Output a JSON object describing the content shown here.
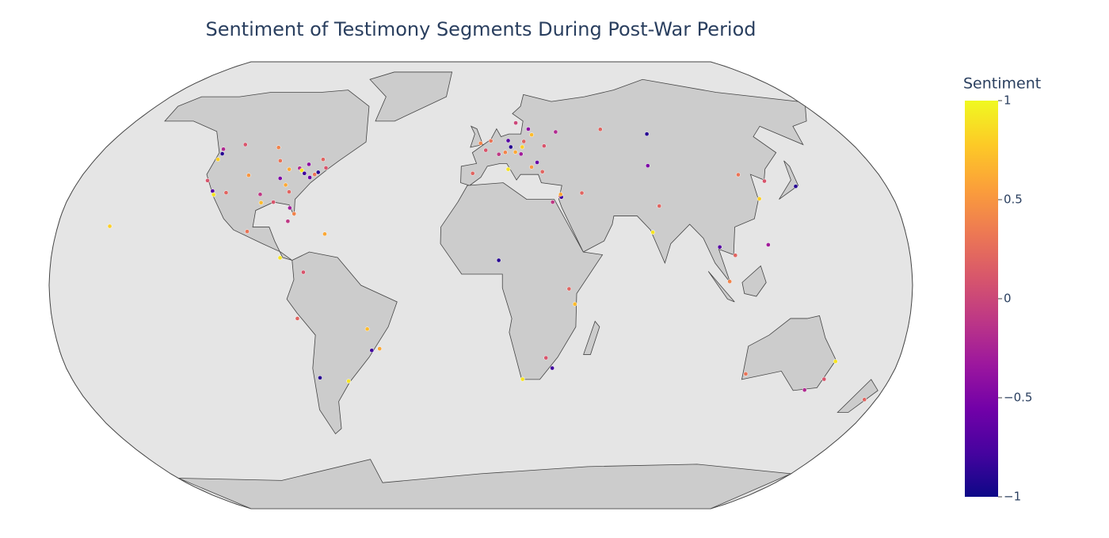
{
  "chart_data": {
    "type": "scattergeo",
    "title": "Sentiment of Testimony Segments During Post-War Period",
    "colorbar_title": "Sentiment",
    "colorscale": [
      "#0d0887",
      "#46039f",
      "#7201a8",
      "#9c179e",
      "#bd3786",
      "#d8576b",
      "#ed7953",
      "#fb9f3a",
      "#fdca26",
      "#f0f921"
    ],
    "clim": [
      -1,
      1
    ],
    "cticks": [
      1,
      0.5,
      0,
      {
        "value": -0.5,
        "label": "−0.5"
      },
      {
        "value": -1,
        "label": "−1"
      }
    ],
    "lon": [
      -74,
      -73.9,
      -75.2,
      -77,
      -71,
      -87.6,
      -83,
      -81.7,
      -80,
      -84.4,
      -80.2,
      -82.5,
      -90.1,
      -95.4,
      -96.8,
      -104.9,
      -112,
      -118.2,
      -117.2,
      -122.4,
      -122.3,
      -122.7,
      -93.3,
      -90.2,
      -86.8,
      -79.4,
      -73.6,
      -114,
      -123.1,
      -97.1,
      -99.1,
      -82.4,
      -66.1,
      -84.1,
      -74.1,
      -46.6,
      -43.2,
      -58.4,
      -70.7,
      -77,
      -47.9,
      2.35,
      -0.1,
      13.4,
      21,
      19.9,
      19,
      16.4,
      14.4,
      4.9,
      12.5,
      -3.7,
      26.1,
      30.5,
      37.6,
      23.3,
      18.1,
      24.1,
      25.3,
      8.5,
      11.6,
      28,
      34.8,
      35.2,
      35,
      31.2,
      44.4,
      82.9,
      60.6,
      76.9,
      116.4,
      121.5,
      139.7,
      126.9,
      77.2,
      72.9,
      100.5,
      106.7,
      121,
      103.8,
      28,
      18.4,
      31,
      36.8,
      7.5,
      39.3,
      151.2,
      145,
      153,
      115.9,
      174.8,
      -157.9
    ],
    "lat": [
      40.7,
      40.8,
      40,
      38.9,
      42.4,
      41.9,
      42.3,
      41.5,
      40.4,
      33.7,
      25.8,
      27.9,
      30,
      29.8,
      32.8,
      39.7,
      33.4,
      34,
      32.7,
      37.8,
      47.6,
      45.5,
      45,
      38.6,
      36.2,
      43.7,
      45.5,
      51,
      49.3,
      49.9,
      19.4,
      23.1,
      18.5,
      9.9,
      4.7,
      -23.5,
      -22.9,
      -34.6,
      -33.4,
      -12,
      -15.8,
      48.9,
      51.5,
      52.5,
      52.2,
      50.1,
      47.5,
      48.2,
      50.1,
      52.4,
      41.9,
      40.4,
      44.4,
      50.5,
      55.8,
      42.7,
      59.3,
      56.9,
      54.7,
      47.4,
      48.1,
      41,
      32.1,
      31.8,
      32.8,
      30,
      33.3,
      55,
      56.8,
      43.2,
      39.9,
      31.2,
      35.7,
      37.6,
      28.6,
      19.1,
      13.8,
      10.8,
      14.6,
      1.35,
      -26.2,
      -33.9,
      -29.9,
      -1.3,
      9,
      -6.8,
      -33.9,
      -37.8,
      -27.5,
      -32,
      -41.3,
      21.3
    ],
    "values": [
      0.8,
      -0.9,
      0.3,
      -0.6,
      0.1,
      0.6,
      -0.2,
      0.9,
      -0.8,
      0.2,
      0.4,
      -0.3,
      0.1,
      0.7,
      -0.1,
      0.5,
      0.2,
      -0.7,
      0.9,
      0.1,
      -0.9,
      0.8,
      0.3,
      -0.5,
      0.6,
      -0.4,
      0.2,
      0.1,
      -0.2,
      0.4,
      0.3,
      -0.1,
      0.6,
      0.9,
      0.1,
      -0.8,
      0.6,
      0.9,
      -0.9,
      0.2,
      0.7,
      0.1,
      0.4,
      -0.7,
      0.2,
      0.8,
      -0.3,
      0.6,
      -0.9,
      0.3,
      0.9,
      0.2,
      -0.6,
      0.1,
      -0.2,
      0.5,
      0,
      -0.4,
      0.7,
      -0.1,
      0.4,
      0.2,
      0.3,
      -0.8,
      0.6,
      -0.1,
      0.2,
      -0.9,
      0.2,
      -0.5,
      0.3,
      0.8,
      -0.9,
      0.1,
      0.2,
      0.9,
      -0.7,
      0.2,
      -0.3,
      0.4,
      0.1,
      0.9,
      -0.8,
      0.2,
      -0.9,
      0.7,
      0.1,
      -0.2,
      0.9,
      0.3,
      0.2,
      0.8
    ]
  }
}
